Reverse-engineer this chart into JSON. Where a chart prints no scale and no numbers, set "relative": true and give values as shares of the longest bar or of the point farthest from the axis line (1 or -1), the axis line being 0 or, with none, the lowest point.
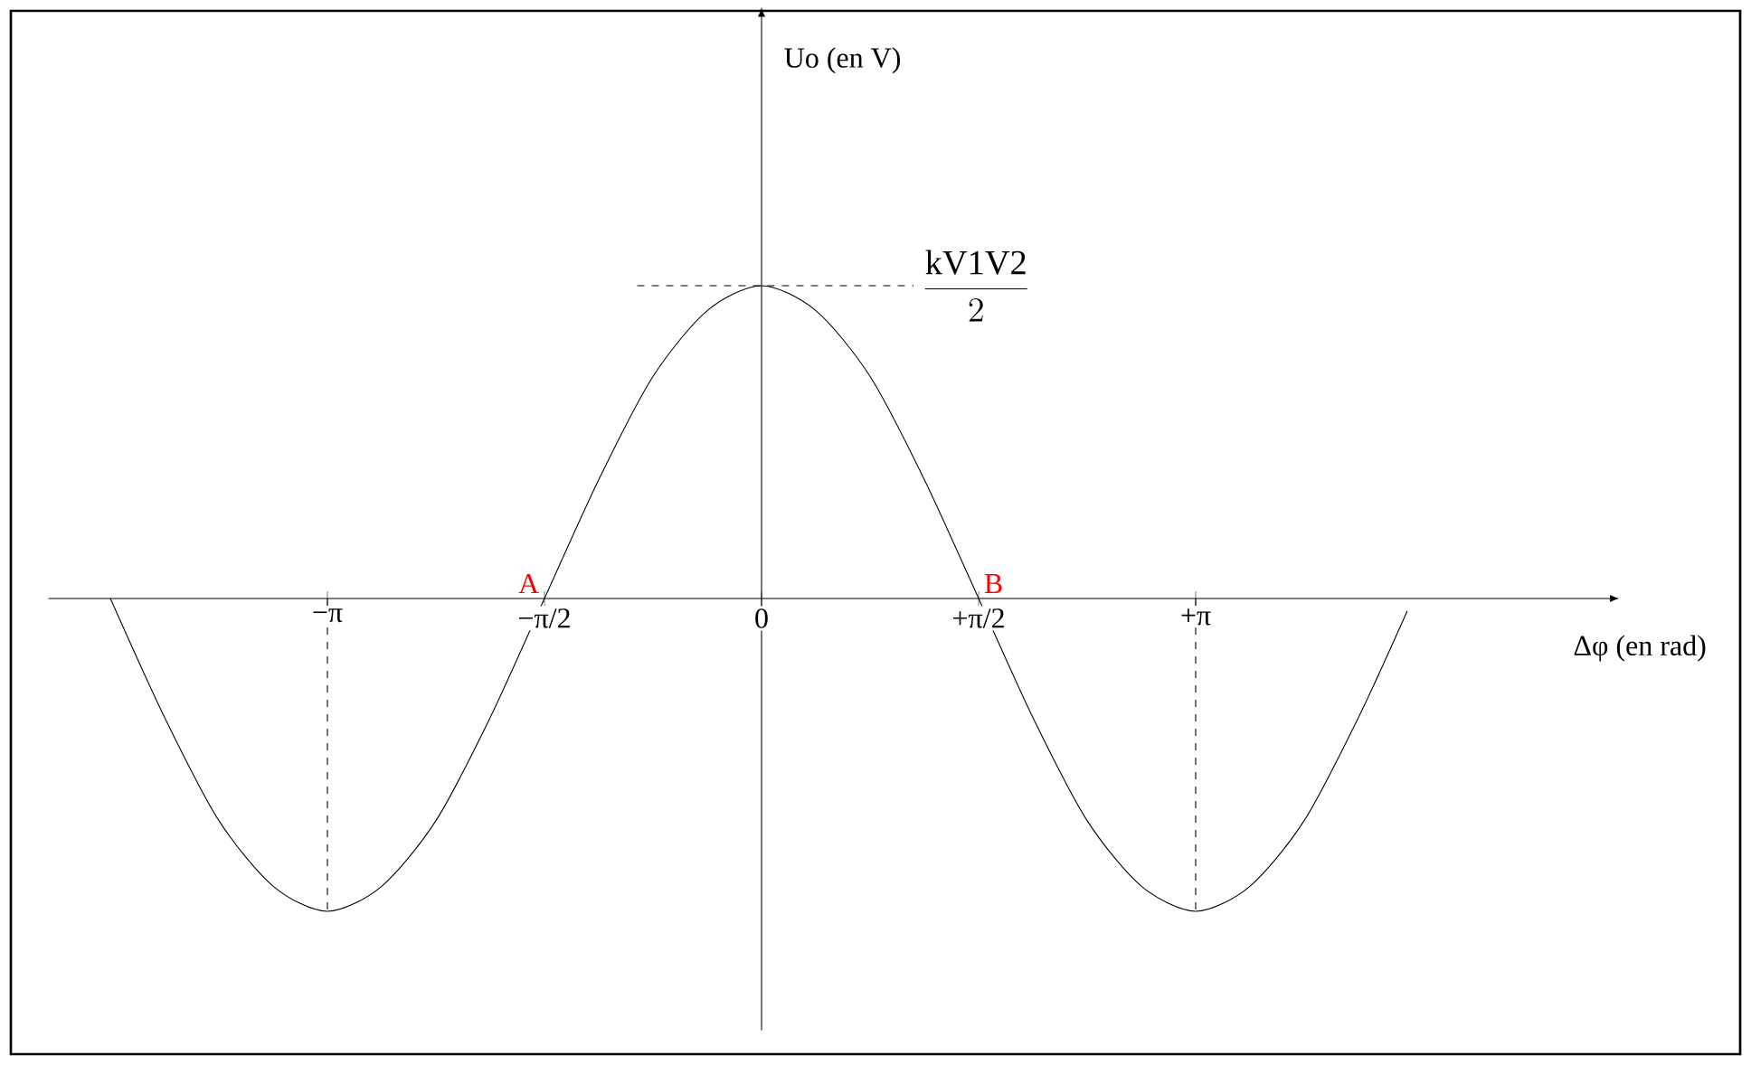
{
  "chart_data": {
    "type": "line",
    "relative": true,
    "xlabel": "Δφ (en rad)",
    "xlim": [
      -5.16,
      6.14
    ],
    "xticks": [
      {
        "value": -3.1416,
        "label": "−π"
      },
      {
        "value": -1.5708,
        "label": "−π/2"
      },
      {
        "value": 0,
        "label": "0"
      },
      {
        "value": 1.5708,
        "label": "+π/2"
      },
      {
        "value": 3.1416,
        "label": "+π"
      }
    ],
    "series": [
      {
        "color": "#000000",
        "line_style": "solid",
        "x": [
          -4.712,
          -4.32,
          -3.927,
          -3.534,
          -3.142,
          -2.749,
          -2.356,
          -1.963,
          -1.571,
          -1.178,
          -0.785,
          -0.393,
          0,
          0.393,
          0.785,
          1.178,
          1.571,
          1.963,
          2.356,
          2.749,
          3.142,
          3.534,
          3.927,
          4.32,
          4.673
        ],
        "values": [
          0,
          -0.38,
          -0.71,
          -0.92,
          -1,
          -0.92,
          -0.71,
          -0.38,
          0,
          0.38,
          0.71,
          0.92,
          1,
          0.92,
          0.71,
          0.38,
          0,
          -0.38,
          -0.71,
          -0.92,
          -1,
          -0.92,
          -0.71,
          -0.38,
          -0.04
        ]
      }
    ],
    "ref_lines": [
      {
        "axis": "x",
        "value": -3.1416,
        "line_style": "dashed"
      },
      {
        "axis": "x",
        "value": 3.1416,
        "line_style": "dashed"
      },
      {
        "axis": "y",
        "value": 1,
        "label": "\\frac{\\mathrm{kV1V2}}{2}",
        "line_style": "dashed"
      }
    ],
    "annotations": [
      {
        "text": "A",
        "x": -1.5708,
        "y": 0
      },
      {
        "text": "B",
        "x": 1.5708,
        "y": 0
      },
      "Uo (en V)"
    ],
    "marker": "none"
  }
}
